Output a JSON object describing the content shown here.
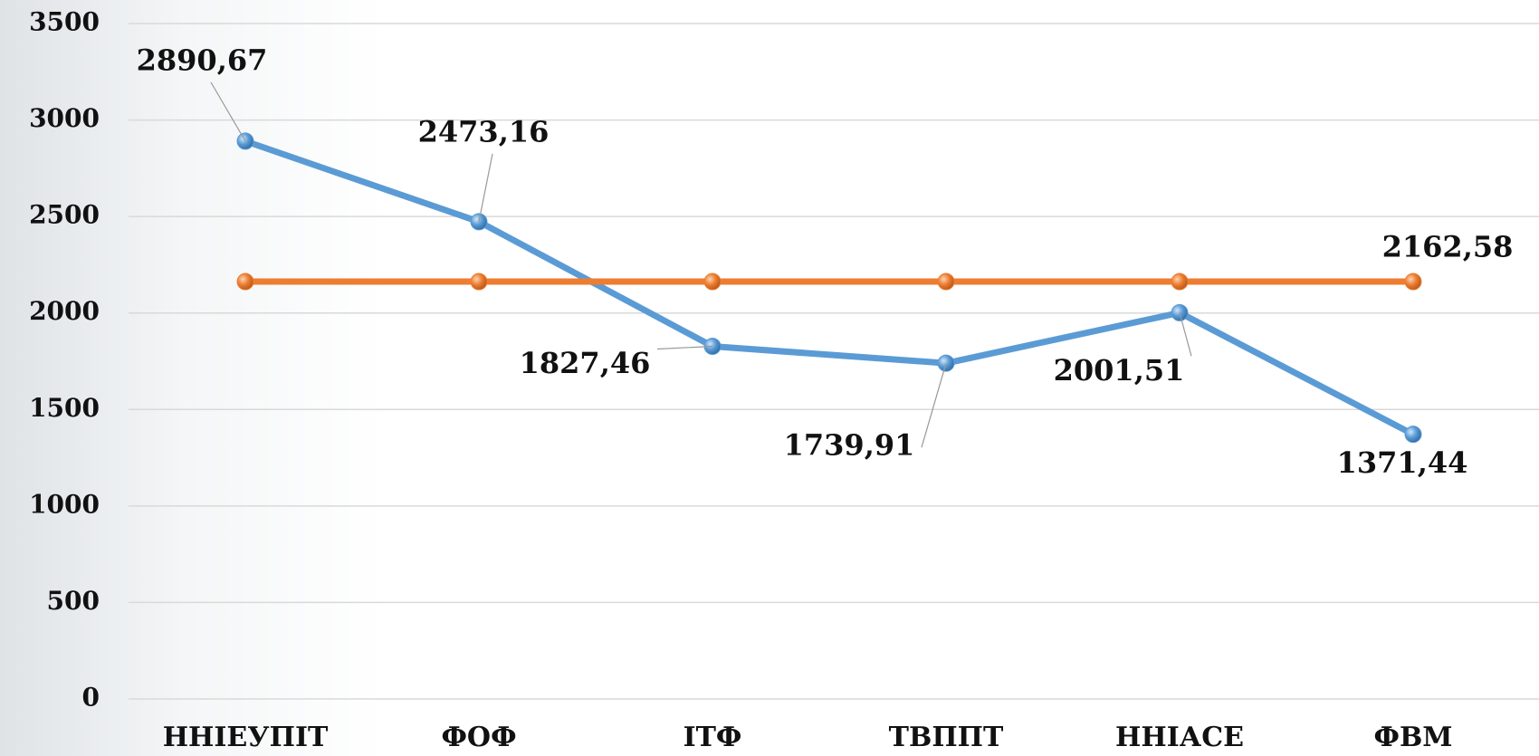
{
  "chart_data": {
    "type": "line",
    "categories": [
      "ННІЕУПІТ",
      "ФОФ",
      "ІТФ",
      "ТВППТ",
      "ННІАСЕ",
      "ФВМ"
    ],
    "series": [
      {
        "color": "#5b9bd5",
        "values": [
          2890.67,
          2473.16,
          1827.46,
          1739.91,
          2001.51,
          1371.44
        ],
        "value_labels": [
          "2890,67",
          "2473,16",
          "1827,46",
          "1739,91",
          "2001,51",
          "1371,44"
        ]
      },
      {
        "color": "#ed7d31",
        "values": [
          2162.58,
          2162.58,
          2162.58,
          2162.58,
          2162.58,
          2162.58
        ],
        "value_labels": [
          null,
          null,
          null,
          null,
          null,
          "2162,58"
        ]
      }
    ],
    "ylim": [
      0,
      3500
    ],
    "yticks": [
      0,
      500,
      1000,
      1500,
      2000,
      2500,
      3000,
      3500
    ],
    "grid": true
  }
}
